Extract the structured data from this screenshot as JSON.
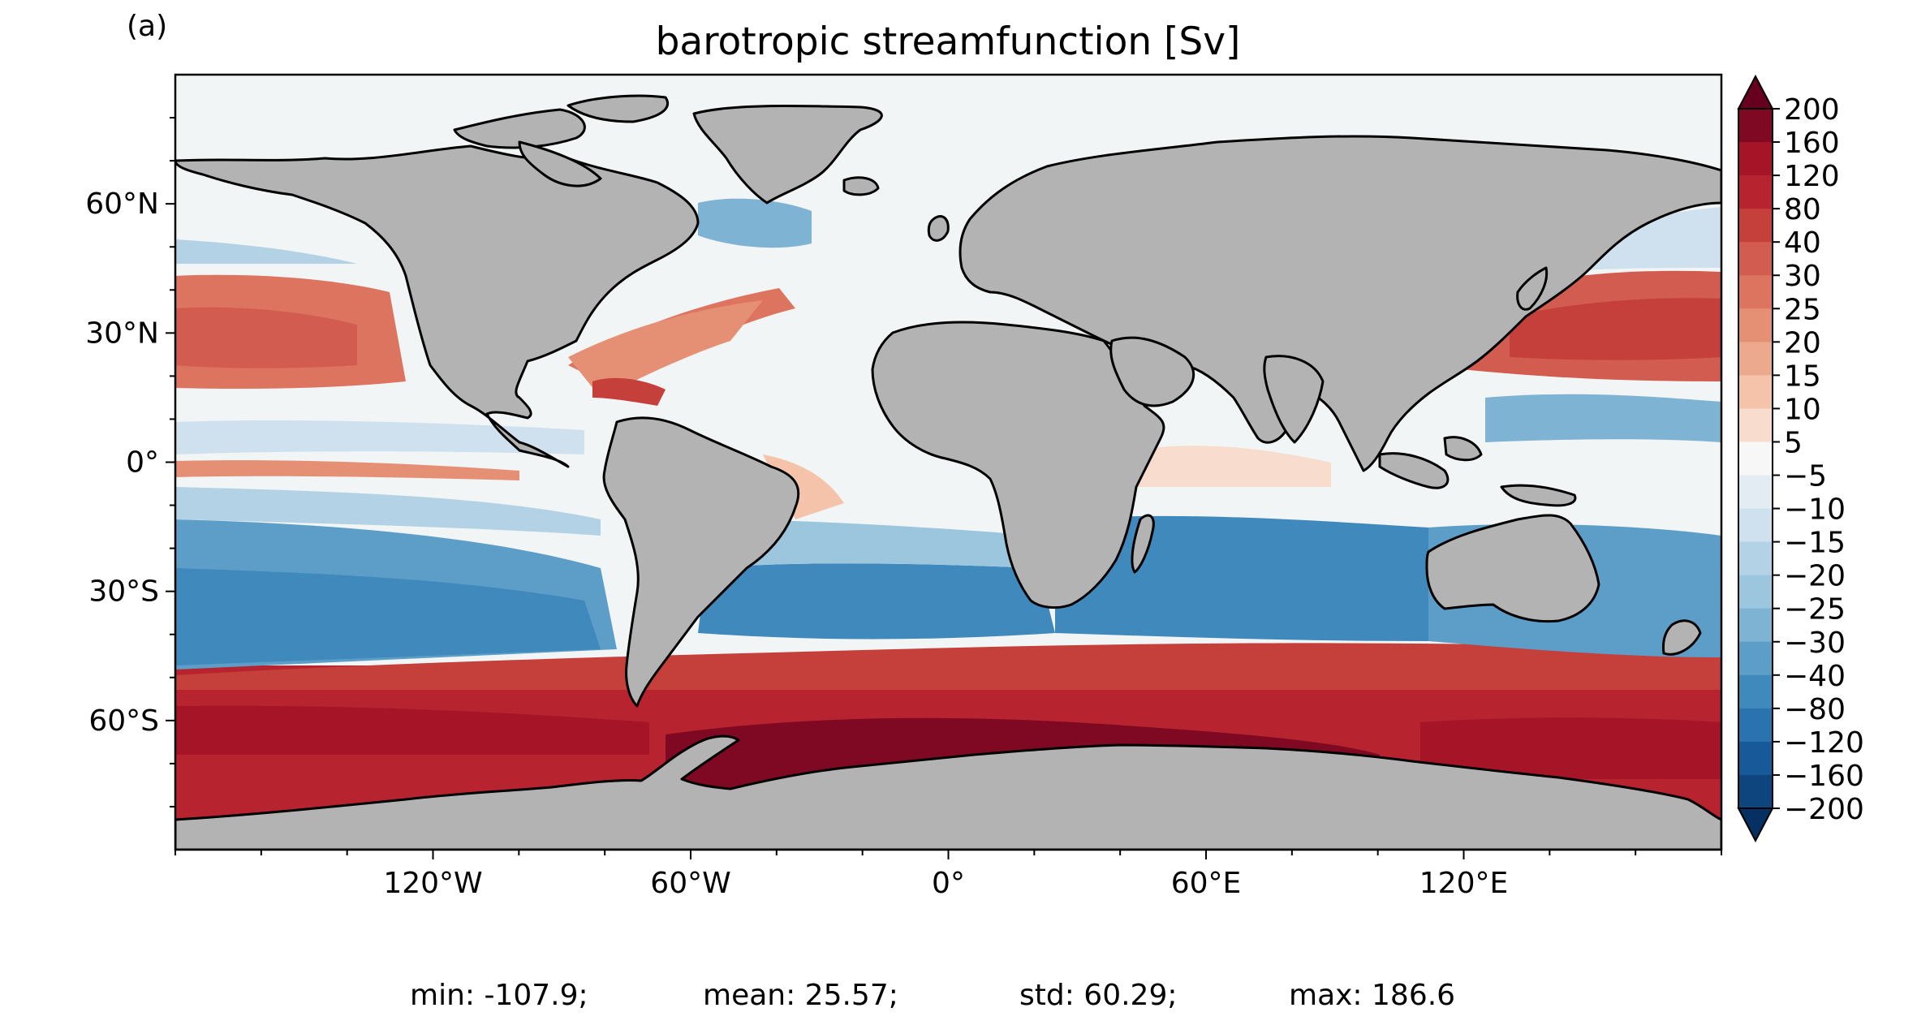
{
  "panel_label": "(a)",
  "title": "barotropic streamfunction [Sv]",
  "map": {
    "projection": "PlateCarree",
    "lon_range": [
      -180,
      180
    ],
    "lat_range": [
      -90,
      90
    ],
    "land_color": "#b3b3b3",
    "coast_color": "#000000",
    "colormap": "RdBu_r",
    "x_ticks": [
      {
        "value": -120,
        "label": "120°W"
      },
      {
        "value": -60,
        "label": "60°W"
      },
      {
        "value": 0,
        "label": "0°"
      },
      {
        "value": 60,
        "label": "60°E"
      },
      {
        "value": 120,
        "label": "120°E"
      }
    ],
    "y_ticks": [
      {
        "value": 60,
        "label": "60°N"
      },
      {
        "value": 30,
        "label": "30°N"
      },
      {
        "value": 0,
        "label": "0°"
      },
      {
        "value": -30,
        "label": "30°S"
      },
      {
        "value": -60,
        "label": "60°S"
      }
    ]
  },
  "colorbar": {
    "extend": "both",
    "levels": [
      "200",
      "160",
      "120",
      "80",
      "40",
      "30",
      "25",
      "20",
      "15",
      "10",
      "5",
      "−5",
      "−10",
      "−15",
      "−20",
      "−25",
      "−30",
      "−40",
      "−80",
      "−120",
      "−160",
      "−200"
    ],
    "colors": [
      "#7f0923",
      "#a61428",
      "#b7232f",
      "#c53f3b",
      "#d25c4f",
      "#dc7460",
      "#e58f74",
      "#eda98d",
      "#f4c3aa",
      "#f8dccd",
      "#f7f7f7",
      "#e3ecf3",
      "#cfe1ee",
      "#b3d2e6",
      "#9bc6de",
      "#7fb3d4",
      "#5d9ec9",
      "#4089bc",
      "#2b73ae",
      "#18599a",
      "#0e457f"
    ],
    "over_color": "#67001f",
    "under_color": "#053061"
  },
  "stats": {
    "min": "min: -107.9;",
    "mean": "mean: 25.57;",
    "std": "std: 60.29;",
    "max": "max: 186.6"
  }
}
